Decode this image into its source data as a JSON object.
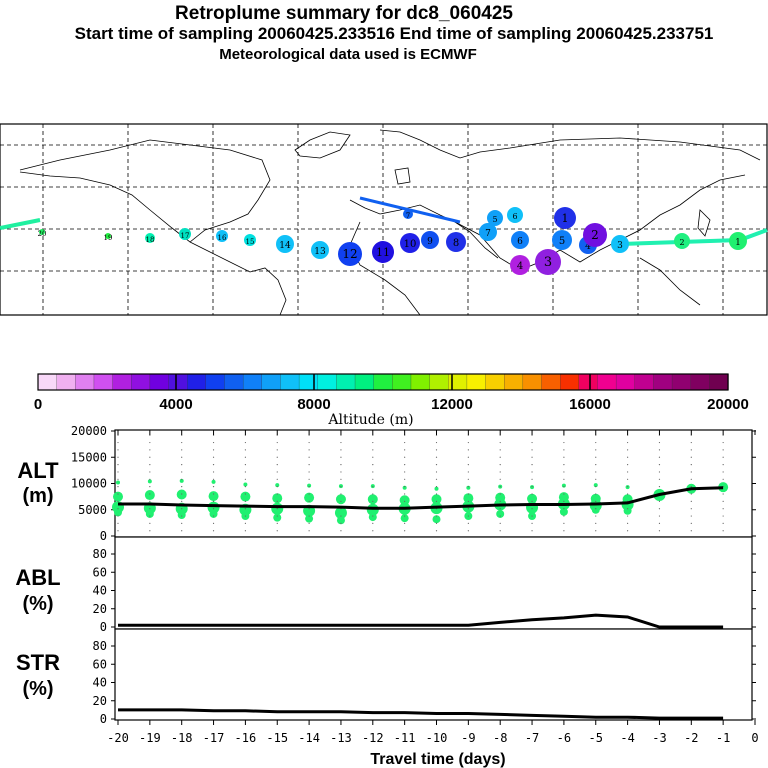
{
  "header": {
    "title": "Retroplume summary for dc8_060425",
    "sampling": "Start time of sampling 20060425.233516     End time of sampling 20060425.233751",
    "met": "Meteorological data used is ECMWF"
  },
  "map": {
    "plume_labels": [
      "1",
      "2",
      "3",
      "4",
      "5",
      "6",
      "7",
      "8",
      "9",
      "10",
      "11",
      "12",
      "13",
      "14",
      "15",
      "16",
      "17",
      "18",
      "19",
      "20"
    ]
  },
  "colorbar": {
    "ticks": [
      "0",
      "4000",
      "8000",
      "12000",
      "16000",
      "20000"
    ],
    "label": "Altitude (m)",
    "colors": [
      "#f8d8f8",
      "#f0b0f0",
      "#e080f0",
      "#d050f0",
      "#b020e0",
      "#9010e0",
      "#7000e0",
      "#5010e0",
      "#2020e8",
      "#1040f0",
      "#1060f0",
      "#1080f8",
      "#10a0f8",
      "#10c0f8",
      "#00e0f8",
      "#00f0e0",
      "#00f0b0",
      "#00f080",
      "#20f040",
      "#40f020",
      "#80f000",
      "#b0f000",
      "#e0f000",
      "#f8f000",
      "#f8d000",
      "#f8b000",
      "#f89000",
      "#f86000",
      "#f83000",
      "#f00060",
      "#f00090",
      "#e000a0",
      "#c00090",
      "#a00080",
      "#900070",
      "#800060",
      "#700050"
    ]
  },
  "panels": {
    "alt": {
      "label_line1": "ALT",
      "label_line2": "(m)",
      "yticks": [
        "20000",
        "15000",
        "10000",
        "5000",
        "0"
      ]
    },
    "abl": {
      "label_line1": "ABL",
      "label_line2": "(%)",
      "yticks": [
        "80",
        "60",
        "40",
        "20",
        "0"
      ]
    },
    "str": {
      "label_line1": "STR",
      "label_line2": "(%)",
      "yticks": [
        "80",
        "60",
        "40",
        "20",
        "0"
      ]
    }
  },
  "x_axis": {
    "ticks": [
      "-20",
      "-19",
      "-18",
      "-17",
      "-16",
      "-15",
      "-14",
      "-13",
      "-12",
      "-11",
      "-10",
      "-9",
      "-8",
      "-7",
      "-6",
      "-5",
      "-4",
      "-3",
      "-2",
      "-1",
      "0"
    ],
    "label": "Travel time (days)"
  },
  "chart_data": [
    {
      "type": "line",
      "title": "ALT",
      "ylabel": "ALT (m)",
      "xlabel": "Travel time (days)",
      "xlim": [
        -20,
        0
      ],
      "ylim": [
        0,
        20000
      ],
      "x": [
        -20,
        -19,
        -18,
        -17,
        -16,
        -15,
        -14,
        -13,
        -12,
        -11,
        -10,
        -9,
        -8,
        -7,
        -6,
        -5,
        -4,
        -3,
        -2,
        -1
      ],
      "series": [
        {
          "name": "mean altitude",
          "values": [
            6100,
            6100,
            5900,
            5800,
            5700,
            5600,
            5600,
            5500,
            5300,
            5300,
            5500,
            5700,
            5900,
            6000,
            6000,
            6100,
            6300,
            7900,
            9000,
            9200
          ]
        }
      ],
      "scatter": [
        {
          "x": -20,
          "y": [
            7500,
            5500,
            4500,
            10200
          ]
        },
        {
          "x": -19,
          "y": [
            7800,
            5300,
            4200,
            10400
          ]
        },
        {
          "x": -18,
          "y": [
            7900,
            5200,
            4000,
            10500
          ]
        },
        {
          "x": -17,
          "y": [
            7600,
            5400,
            4200,
            10300
          ]
        },
        {
          "x": -16,
          "y": [
            7500,
            5000,
            3800,
            9800
          ]
        },
        {
          "x": -15,
          "y": [
            7200,
            5200,
            3500,
            9700
          ]
        },
        {
          "x": -14,
          "y": [
            7300,
            4800,
            3300,
            9600
          ]
        },
        {
          "x": -13,
          "y": [
            7000,
            4400,
            3000,
            9500
          ]
        },
        {
          "x": -12,
          "y": [
            7000,
            5000,
            3600,
            9500
          ]
        },
        {
          "x": -11,
          "y": [
            6800,
            5200,
            3400,
            9200
          ]
        },
        {
          "x": -10,
          "y": [
            7000,
            5300,
            3200,
            9000
          ]
        },
        {
          "x": -9,
          "y": [
            7200,
            5600,
            3800,
            9200
          ]
        },
        {
          "x": -8,
          "y": [
            7300,
            6000,
            4200,
            9400
          ]
        },
        {
          "x": -7,
          "y": [
            7100,
            5400,
            3800,
            9300
          ]
        },
        {
          "x": -6,
          "y": [
            7400,
            6100,
            4600,
            9600
          ]
        },
        {
          "x": -5,
          "y": [
            7100,
            5800,
            5000,
            9700
          ]
        },
        {
          "x": -4,
          "y": [
            7000,
            6000,
            4800,
            9300
          ]
        },
        {
          "x": -3,
          "y": [
            8000,
            7800
          ]
        },
        {
          "x": -2,
          "y": [
            9000
          ]
        },
        {
          "x": -1,
          "y": [
            9300
          ]
        }
      ]
    },
    {
      "type": "line",
      "title": "ABL",
      "ylabel": "ABL (%)",
      "xlim": [
        -20,
        0
      ],
      "ylim": [
        0,
        90
      ],
      "x": [
        -20,
        -19,
        -18,
        -17,
        -16,
        -15,
        -14,
        -13,
        -12,
        -11,
        -10,
        -9,
        -8,
        -7,
        -6,
        -5,
        -4,
        -3,
        -2,
        -1
      ],
      "series": [
        {
          "name": "ABL fraction",
          "values": [
            2,
            2,
            2,
            2,
            2,
            2,
            2,
            2,
            2,
            2,
            2,
            2,
            5,
            8,
            10,
            13,
            11,
            0,
            0,
            0
          ]
        }
      ]
    },
    {
      "type": "line",
      "title": "STR",
      "ylabel": "STR (%)",
      "xlim": [
        -20,
        0
      ],
      "ylim": [
        0,
        90
      ],
      "x": [
        -20,
        -19,
        -18,
        -17,
        -16,
        -15,
        -14,
        -13,
        -12,
        -11,
        -10,
        -9,
        -8,
        -7,
        -6,
        -5,
        -4,
        -3,
        -2,
        -1
      ],
      "series": [
        {
          "name": "stratospheric fraction",
          "values": [
            10,
            10,
            10,
            9,
            9,
            8,
            8,
            8,
            7,
            7,
            6,
            6,
            5,
            4,
            3,
            2,
            2,
            1,
            1,
            1
          ]
        }
      ]
    }
  ]
}
